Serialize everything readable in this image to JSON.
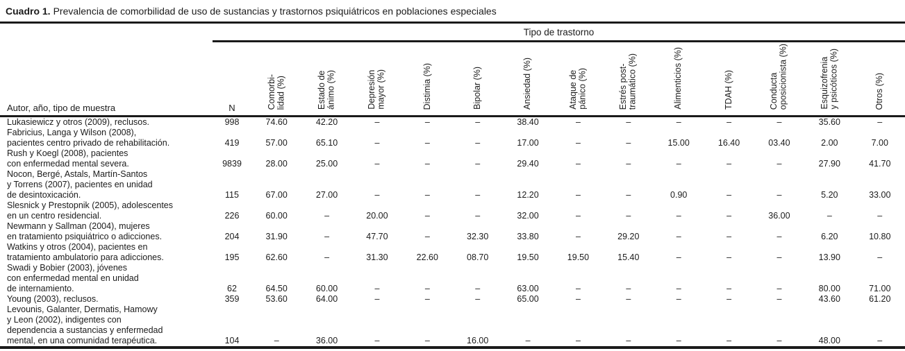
{
  "title": {
    "label": "Cuadro 1.",
    "text": "Prevalencia de comorbilidad de uso de sustancias y trastornos psiquiátricos en poblaciones especiales"
  },
  "table": {
    "spanner": "Tipo de trastorno",
    "row_header": "Autor, año, tipo de muestra",
    "columns": [
      "N",
      "Comorbi-\nlidad (%)",
      "Estado de\nánimo (%)",
      "Depresión\nmayor (%)",
      "Distimia (%)",
      "Bipolar (%)",
      "Ansiedad (%)",
      "Ataque de\npánico (%)",
      "Estrés post-\ntraumático (%)",
      "Alimenticios (%)",
      "TDAH (%)",
      "Conducta\noposicionista (%)",
      "Esquizofrenia\ny psicóticos (%)",
      "Otros (%)"
    ],
    "empty_cell": "–",
    "rows": [
      {
        "author": "Lukasiewicz y otros (2009), reclusos.",
        "values": [
          "998",
          "74.60",
          "42.20",
          "–",
          "–",
          "–",
          "38.40",
          "–",
          "–",
          "–",
          "–",
          "–",
          "35.60",
          "–"
        ]
      },
      {
        "author": "Fabricius, Langa y Wilson (2008),\npacientes centro privado de rehabilitación.",
        "values": [
          "419",
          "57.00",
          "65.10",
          "–",
          "–",
          "–",
          "17.00",
          "–",
          "–",
          "15.00",
          "16.40",
          "03.40",
          "2.00",
          "7.00"
        ]
      },
      {
        "author": "Rush y Koegl (2008), pacientes\ncon enfermedad mental severa.",
        "values": [
          "9839",
          "28.00",
          "25.00",
          "–",
          "–",
          "–",
          "29.40",
          "–",
          "–",
          "–",
          "–",
          "–",
          "27.90",
          "41.70"
        ]
      },
      {
        "author": "Nocon, Bergé, Astals, Martín-Santos\ny Torrens (2007), pacientes en unidad\nde desintoxicación.",
        "values": [
          "115",
          "67.00",
          "27.00",
          "–",
          "–",
          "–",
          "12.20",
          "–",
          "–",
          "0.90",
          "–",
          "–",
          "5.20",
          "33.00"
        ]
      },
      {
        "author": "Slesnick y Prestopnik (2005), adolescentes\nen un centro residencial.",
        "values": [
          "226",
          "60.00",
          "–",
          "20.00",
          "–",
          "–",
          "32.00",
          "–",
          "–",
          "–",
          "–",
          "36.00",
          "–",
          "–"
        ]
      },
      {
        "author": "Newmann y Sallman (2004), mujeres\nen tratamiento psiquiátrico o adicciones.",
        "values": [
          "204",
          "31.90",
          "–",
          "47.70",
          "–",
          "32.30",
          "33.80",
          "–",
          "29.20",
          "–",
          "–",
          "–",
          "6.20",
          "10.80"
        ]
      },
      {
        "author": "Watkins y otros (2004), pacientes en\ntratamiento ambulatorio para adicciones.",
        "values": [
          "195",
          "62.60",
          "–",
          "31.30",
          "22.60",
          "08.70",
          "19.50",
          "19.50",
          "15.40",
          "–",
          "–",
          "–",
          "13.90",
          "–"
        ]
      },
      {
        "author": "Swadi y Bobier (2003), jóvenes\ncon enfermedad mental en unidad\nde internamiento.",
        "values": [
          "62",
          "64.50",
          "60.00",
          "–",
          "–",
          "–",
          "63.00",
          "–",
          "–",
          "–",
          "–",
          "–",
          "80.00",
          "71.00"
        ]
      },
      {
        "author": "Young (2003), reclusos.",
        "values": [
          "359",
          "53.60",
          "64.00",
          "–",
          "–",
          "–",
          "65.00",
          "–",
          "–",
          "–",
          "–",
          "–",
          "43.60",
          "61.20"
        ]
      },
      {
        "author": "Levounis, Galanter, Dermatis, Hamowy\ny Leon (2002), indigentes con\ndependencia a sustancias y enfermedad\nmental, en una comunidad terapéutica.",
        "values": [
          "104",
          "–",
          "36.00",
          "–",
          "–",
          "16.00",
          "–",
          "–",
          "–",
          "–",
          "–",
          "–",
          "48.00",
          "–"
        ]
      }
    ]
  }
}
